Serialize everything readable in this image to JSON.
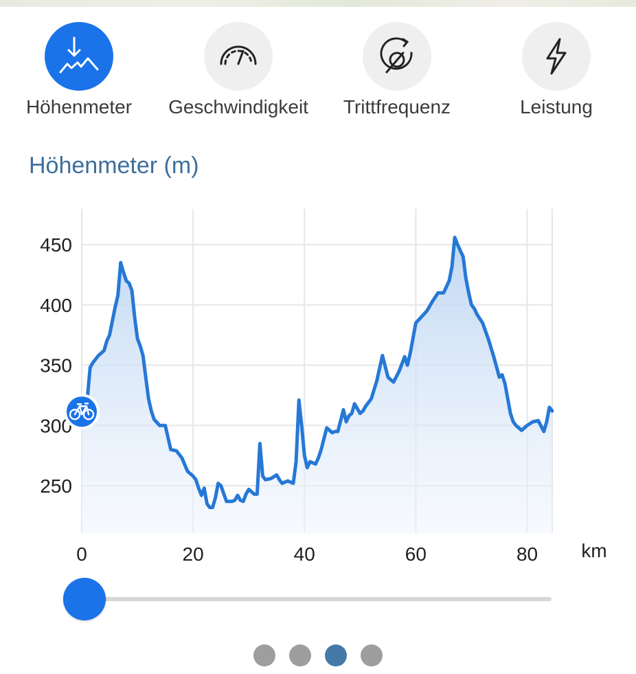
{
  "tabs": [
    {
      "label": "Höhenmeter",
      "icon": "elevation-icon",
      "active": true
    },
    {
      "label": "Geschwindigkeit",
      "icon": "speedometer-icon",
      "active": false
    },
    {
      "label": "Trittfrequenz",
      "icon": "cadence-icon",
      "active": false
    },
    {
      "label": "Leistung",
      "icon": "lightning-icon",
      "active": false
    }
  ],
  "section_title": "Höhenmeter (m)",
  "marker_icon": "bicycle-icon",
  "colors": {
    "accent": "#1a73e8",
    "line": "#2678d6",
    "title": "#3e6e9a",
    "pager_active": "#457aa8",
    "pager_inactive": "#9e9e9e"
  },
  "slider": {
    "value": 0
  },
  "pager": {
    "count": 4,
    "active_index": 2
  },
  "chart_data": {
    "type": "area",
    "title": "Höhenmeter (m)",
    "xlabel": "km",
    "ylabel": "",
    "xlim": [
      0,
      84.5
    ],
    "ylim": [
      210,
      460
    ],
    "xticks": [
      0,
      20,
      40,
      60,
      80
    ],
    "yticks": [
      250,
      300,
      350,
      400,
      450
    ],
    "grid": true,
    "marker": {
      "x": 0,
      "y": 300
    },
    "x": [
      0,
      1,
      1.5,
      2,
      3,
      4,
      4.5,
      5,
      6,
      6.5,
      7,
      7.5,
      8,
      8.5,
      9,
      9.5,
      10,
      10.5,
      11,
      11.5,
      12,
      12.5,
      13,
      14,
      15,
      16,
      17,
      18,
      19,
      20,
      20.5,
      21,
      21.5,
      22,
      22.5,
      23,
      23.5,
      24,
      24.5,
      25,
      26,
      27,
      27.5,
      28,
      28.5,
      29,
      29.5,
      30,
      30.5,
      31,
      31.5,
      32,
      32.5,
      33,
      34,
      35,
      35.5,
      36,
      36.5,
      37,
      37.5,
      38,
      38.5,
      39,
      39.5,
      40,
      40.5,
      41,
      42,
      42.5,
      43,
      44,
      45,
      45.5,
      46,
      47,
      47.5,
      48,
      48.5,
      49,
      50,
      50.5,
      51,
      52,
      53,
      54,
      55,
      55.5,
      56,
      57,
      58,
      58.5,
      59,
      60,
      61,
      62,
      63,
      64,
      65,
      66,
      66.5,
      67,
      67.5,
      68,
      68.5,
      69,
      69.5,
      70,
      70.5,
      71,
      72,
      73,
      74,
      75,
      75.5,
      76,
      77,
      77.5,
      78,
      79,
      80,
      81,
      82,
      83,
      83.5,
      84,
      84.5
    ],
    "values": [
      300,
      322,
      348,
      352,
      358,
      362,
      370,
      375,
      398,
      408,
      435,
      427,
      420,
      418,
      412,
      390,
      372,
      366,
      358,
      340,
      322,
      312,
      305,
      300,
      300,
      280,
      279,
      273,
      262,
      258,
      255,
      248,
      242,
      248,
      235,
      232,
      232,
      240,
      252,
      250,
      237,
      237,
      238,
      242,
      238,
      237,
      243,
      247,
      245,
      243,
      243,
      285,
      258,
      255,
      256,
      259,
      255,
      252,
      253,
      254,
      253,
      252,
      270,
      321,
      300,
      275,
      265,
      270,
      268,
      273,
      280,
      298,
      294,
      295,
      295,
      313,
      303,
      308,
      310,
      318,
      310,
      312,
      316,
      322,
      337,
      358,
      340,
      338,
      336,
      345,
      357,
      350,
      360,
      385,
      390,
      395,
      403,
      410,
      410,
      420,
      432,
      456,
      450,
      445,
      440,
      422,
      410,
      400,
      397,
      392,
      385,
      372,
      357,
      340,
      342,
      335,
      310,
      303,
      300,
      296,
      300,
      303,
      304,
      295,
      303,
      315,
      312
    ]
  }
}
